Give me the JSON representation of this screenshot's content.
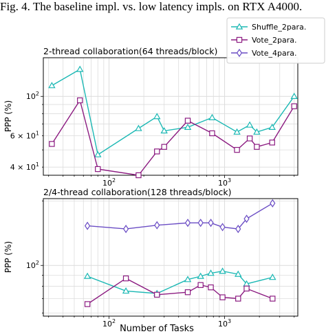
{
  "caption": "Fig. 4.  The baseline impl. vs. low latency impls. on RTX A4000.",
  "chart_data": [
    {
      "type": "line",
      "title": "2-thread collaboration(64 threads/block)",
      "xlabel": "",
      "ylabel": "PPP (%)",
      "xscale": "log",
      "yscale": "log",
      "xlim": [
        27,
        4300
      ],
      "ylim": [
        36,
        165
      ],
      "xticks": [
        {
          "value": 100,
          "label": "10^2"
        },
        {
          "value": 1000,
          "label": "10^3"
        }
      ],
      "yticks": [
        {
          "value": 40,
          "label": "4 × 10^1"
        },
        {
          "value": 60,
          "label": "6 × 10^1"
        },
        {
          "value": 100,
          "label": "10^2"
        }
      ],
      "grid": true,
      "legend": "top-right",
      "legend_entries": [
        {
          "name": "Shuffle_2para.",
          "color": "#1bb8b4",
          "marker": "triangle"
        },
        {
          "name": "Vote_2para.",
          "color": "#8b1a80",
          "marker": "square"
        },
        {
          "name": "Vote_4para.",
          "color": "#6a4cc4",
          "marker": "diamond"
        }
      ],
      "series": [
        {
          "name": "Shuffle_2para.",
          "color": "#1bb8b4",
          "marker": "triangle",
          "x": [
            32,
            56,
            80,
            180,
            260,
            300,
            480,
            780,
            1280,
            1650,
            1900,
            2580,
            4000
          ],
          "y": [
            115,
            142,
            47,
            66,
            77,
            64,
            67,
            76,
            63,
            69,
            63,
            67,
            100
          ]
        },
        {
          "name": "Vote_2para.",
          "color": "#8b1a80",
          "marker": "square",
          "x": [
            32,
            56,
            80,
            180,
            260,
            300,
            480,
            780,
            1280,
            1650,
            1900,
            2580,
            4000
          ],
          "y": [
            54,
            95,
            39,
            36,
            49,
            52,
            73,
            62,
            50,
            58,
            52,
            55,
            88
          ]
        }
      ]
    },
    {
      "type": "line",
      "title": "2/4-thread collaboration(128 threads/block)",
      "xlabel": "Number of Tasks",
      "ylabel": "PPP (%)",
      "xscale": "log",
      "yscale": "log",
      "xlim": [
        27,
        4300
      ],
      "ylim": [
        58,
        205
      ],
      "xticks": [
        {
          "value": 100,
          "label": "10^2"
        },
        {
          "value": 1000,
          "label": "10^3"
        }
      ],
      "yticks": [
        {
          "value": 100,
          "label": "10^2"
        }
      ],
      "grid": true,
      "series": [
        {
          "name": "Shuffle_2para.",
          "color": "#1bb8b4",
          "marker": "triangle",
          "x": [
            65,
            140,
            260,
            480,
            620,
            760,
            960,
            1310,
            1550,
            2600
          ],
          "y": [
            89,
            76,
            74,
            86,
            89,
            92,
            94,
            91,
            82,
            88
          ]
        },
        {
          "name": "Vote_2para.",
          "color": "#8b1a80",
          "marker": "square",
          "x": [
            65,
            140,
            260,
            480,
            620,
            760,
            960,
            1310,
            1550,
            2600
          ],
          "y": [
            66,
            87,
            73,
            75,
            81,
            79,
            71,
            70,
            78,
            70
          ]
        },
        {
          "name": "Vote_4para.",
          "color": "#6a4cc4",
          "marker": "diamond",
          "x": [
            65,
            140,
            260,
            480,
            620,
            760,
            960,
            1310,
            1550,
            2600
          ],
          "y": [
            153,
            148,
            154,
            158,
            158,
            158,
            151,
            148,
            165,
            195
          ]
        }
      ]
    }
  ]
}
